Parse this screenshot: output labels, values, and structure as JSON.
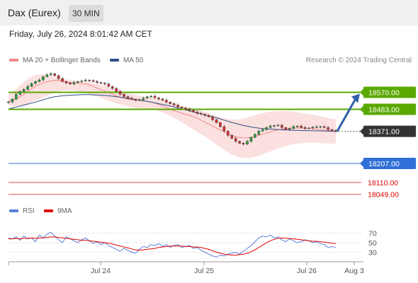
{
  "header": {
    "title": "Dax (Eurex)",
    "interval": "30 MIN"
  },
  "timestamp": "Friday, July 26, 2024 8:01:42 AM CET",
  "credit": "Research © 2024 Trading Central",
  "legend": {
    "ma20": {
      "label": "MA 20 + Bollinger Bands",
      "color": "#f28a8a"
    },
    "ma50": {
      "label": "MA 50",
      "color": "#2f4f86"
    },
    "rsi": {
      "label": "RSI",
      "color": "#5a7fd8"
    },
    "ma9": {
      "label": "9MA",
      "color": "#e00000"
    }
  },
  "chart_data": {
    "type": "candlestick",
    "price_range": [
      18030,
      18680
    ],
    "x_labels": [
      "Jul 24",
      "Jul 25",
      "Jul 26",
      "Aug 3"
    ],
    "levels": [
      {
        "value": 18570.0,
        "label": "18570.00",
        "kind": "resistance",
        "color": "#5aa800"
      },
      {
        "value": 18483.0,
        "label": "18483.00",
        "kind": "resistance",
        "color": "#5aa800"
      },
      {
        "value": 18371.0,
        "label": "18371.00",
        "kind": "last",
        "color": "#333333"
      },
      {
        "value": 18207.0,
        "label": "18207.00",
        "kind": "pivot",
        "color": "#2f6fd8"
      },
      {
        "value": 18110.0,
        "label": "18110.00",
        "kind": "support",
        "color": "#e00000"
      },
      {
        "value": 18049.0,
        "label": "18049.00",
        "kind": "support",
        "color": "#e00000"
      }
    ],
    "closes": [
      18521,
      18535,
      18560,
      18575,
      18585,
      18600,
      18615,
      18625,
      18633,
      18650,
      18660,
      18665,
      18655,
      18640,
      18625,
      18618,
      18612,
      18620,
      18625,
      18628,
      18632,
      18630,
      18625,
      18620,
      18616,
      18612,
      18600,
      18590,
      18575,
      18560,
      18548,
      18540,
      18535,
      18530,
      18532,
      18540,
      18548,
      18550,
      18542,
      18536,
      18530,
      18520,
      18512,
      18505,
      18495,
      18490,
      18484,
      18478,
      18470,
      18462,
      18458,
      18452,
      18445,
      18430,
      18415,
      18395,
      18372,
      18350,
      18335,
      18320,
      18310,
      18305,
      18320,
      18340,
      18355,
      18372,
      18380,
      18390,
      18398,
      18400,
      18402,
      18390,
      18380,
      18385,
      18395,
      18398,
      18390,
      18385,
      18388,
      18392,
      18394,
      18395,
      18390,
      18380,
      18375,
      18371
    ],
    "ma20": [
      18525,
      18530,
      18538,
      18548,
      18560,
      18574,
      18588,
      18600,
      18610,
      18618,
      18624,
      18628,
      18630,
      18630,
      18628,
      18624,
      18620,
      18618,
      18616,
      18614,
      18612,
      18608,
      18600,
      18592,
      18584,
      18576,
      18568,
      18560,
      18552,
      18545,
      18540,
      18536,
      18532,
      18530,
      18528,
      18526,
      18524,
      18520,
      18515,
      18508,
      18500,
      18492,
      18484,
      18476,
      18470,
      18464,
      18458,
      18452,
      18446,
      18438,
      18428,
      18418,
      18408,
      18398,
      18388,
      18378,
      18368,
      18358,
      18350,
      18344,
      18340,
      18338,
      18338,
      18340,
      18344,
      18350,
      18356,
      18362,
      18368,
      18374,
      18378,
      18382,
      18384,
      18386,
      18388,
      18388,
      18388,
      18387,
      18386,
      18384,
      18382,
      18380,
      18378,
      18376,
      18374,
      18372
    ],
    "bb_upper": [
      18560,
      18572,
      18588,
      18605,
      18622,
      18638,
      18650,
      18658,
      18662,
      18662,
      18660,
      18656,
      18650,
      18644,
      18640,
      18636,
      18632,
      18630,
      18628,
      18626,
      18624,
      18620,
      18616,
      18612,
      18608,
      18602,
      18596,
      18590,
      18584,
      18578,
      18572,
      18567,
      18562,
      18557,
      18552,
      18548,
      18545,
      18542,
      18538,
      18534,
      18529,
      18524,
      18518,
      18512,
      18506,
      18501,
      18497,
      18493,
      18488,
      18482,
      18476,
      18470,
      18463,
      18456,
      18449,
      18443,
      18438,
      18434,
      18431,
      18430,
      18432,
      18436,
      18441,
      18447,
      18453,
      18459,
      18464,
      18468,
      18471,
      18473,
      18474,
      18474,
      18474,
      18473,
      18471,
      18468,
      18465,
      18462,
      18459,
      18456,
      18452,
      18448,
      18444,
      18440,
      18436,
      18433
    ],
    "bb_lower": [
      18505,
      18500,
      18498,
      18500,
      18505,
      18512,
      18520,
      18528,
      18536,
      18544,
      18552,
      18560,
      18568,
      18574,
      18578,
      18580,
      18580,
      18578,
      18574,
      18570,
      18565,
      18560,
      18554,
      18548,
      18542,
      18535,
      18528,
      18521,
      18514,
      18508,
      18503,
      18498,
      18494,
      18490,
      18488,
      18487,
      18486,
      18484,
      18480,
      18475,
      18468,
      18460,
      18450,
      18440,
      18428,
      18416,
      18404,
      18392,
      18380,
      18368,
      18356,
      18344,
      18332,
      18318,
      18304,
      18290,
      18276,
      18263,
      18252,
      18244,
      18238,
      18235,
      18234,
      18236,
      18240,
      18246,
      18253,
      18261,
      18269,
      18277,
      18284,
      18290,
      18296,
      18301,
      18305,
      18308,
      18310,
      18312,
      18313,
      18313,
      18312,
      18311,
      18310,
      18309,
      18308,
      18307
    ],
    "ma50": [
      18485,
      18490,
      18495,
      18500,
      18505,
      18510,
      18515,
      18520,
      18526,
      18532,
      18538,
      18543,
      18547,
      18550,
      18552,
      18554,
      18555,
      18556,
      18557,
      18558,
      18558,
      18558,
      18557,
      18556,
      18555,
      18554,
      18552,
      18550,
      18548,
      18545,
      18542,
      18539,
      18536,
      18533,
      18530,
      18527,
      18524,
      18520,
      18516,
      18512,
      18508,
      18504,
      18500,
      18495,
      18490,
      18485,
      18480,
      18475,
      18470,
      18465,
      18460,
      18455,
      18450,
      18445,
      18440,
      18434,
      18428,
      18422,
      18416,
      18411,
      18406,
      18401,
      18397,
      18393,
      18390,
      18387,
      18385,
      18383,
      18382,
      18381,
      18380,
      18379,
      18378,
      18377,
      18376,
      18376,
      18375,
      18375,
      18374,
      18374,
      18373,
      18373,
      18372,
      18372,
      18371,
      18371
    ],
    "rsi": {
      "range": [
        10,
        90
      ],
      "ticks": [
        70,
        50,
        30
      ]
    },
    "rsi_values": [
      60,
      58,
      62,
      55,
      64,
      58,
      60,
      52,
      66,
      60,
      68,
      72,
      64,
      56,
      50,
      62,
      58,
      54,
      50,
      56,
      60,
      54,
      48,
      52,
      46,
      50,
      44,
      40,
      36,
      32,
      38,
      34,
      30,
      28,
      36,
      42,
      40,
      46,
      44,
      48,
      42,
      46,
      40,
      44,
      46,
      40,
      42,
      44,
      38,
      40,
      34,
      30,
      26,
      22,
      20,
      24,
      22,
      26,
      28,
      30,
      26,
      32,
      38,
      44,
      52,
      60,
      64,
      62,
      66,
      60,
      62,
      56,
      52,
      58,
      54,
      50,
      52,
      56,
      54,
      50,
      52,
      48,
      46,
      40,
      42,
      40
    ],
    "rsi_ma9": [
      58,
      58,
      59,
      58,
      59,
      59,
      60,
      59,
      60,
      60,
      61,
      62,
      62,
      61,
      60,
      59,
      58,
      57,
      56,
      55,
      55,
      54,
      53,
      52,
      51,
      50,
      49,
      47,
      45,
      43,
      41,
      39,
      37,
      35,
      34,
      35,
      36,
      37,
      38,
      40,
      41,
      42,
      43,
      43,
      43,
      43,
      42,
      42,
      41,
      41,
      40,
      38,
      36,
      33,
      30,
      28,
      26,
      25,
      24,
      24,
      25,
      26,
      28,
      31,
      35,
      40,
      45,
      50,
      54,
      57,
      59,
      60,
      59,
      59,
      58,
      57,
      56,
      55,
      54,
      53,
      53,
      52,
      51,
      50,
      49,
      48
    ]
  }
}
